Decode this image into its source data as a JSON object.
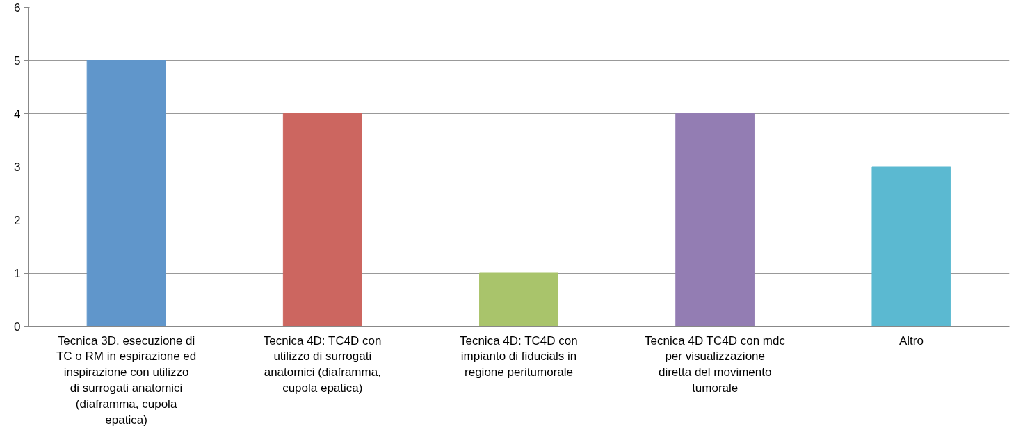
{
  "chart_data": {
    "type": "bar",
    "categories": [
      "Tecnica 3D. esecuzione di TC o RM in espirazione ed inspirazione con utilizzo di surrogati anatomici (diaframma, cupola epatica)",
      "Tecnica 4D: TC4D con utilizzo di surrogati anatomici (diaframma, cupola epatica)",
      "Tecnica 4D: TC4D con impianto di fiducials in regione peritumorale",
      "Tecnica 4D TC4D con mdc per visualizzazione diretta del movimento tumorale",
      "Altro"
    ],
    "values": [
      5,
      4,
      1,
      4,
      3
    ],
    "colors": [
      "#6096cb",
      "#cc6660",
      "#a9c46b",
      "#937db3",
      "#5bb9d1"
    ],
    "ylim": [
      0,
      6
    ],
    "yticks": [
      0,
      1,
      2,
      3,
      4,
      5,
      6
    ],
    "grid": "y"
  }
}
